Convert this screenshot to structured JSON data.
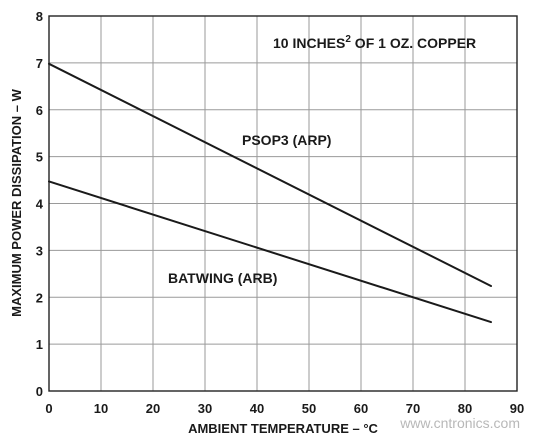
{
  "chart_data": {
    "type": "line",
    "xlabel": "AMBIENT TEMPERATURE – °C",
    "ylabel": "MAXIMUM POWER DISSIPATION – W",
    "xlim": [
      0,
      90
    ],
    "ylim": [
      0,
      8
    ],
    "xticks": [
      "0",
      "10",
      "20",
      "30",
      "40",
      "50",
      "60",
      "70",
      "80",
      "90"
    ],
    "yticks": [
      "0",
      "1",
      "2",
      "3",
      "4",
      "5",
      "6",
      "7",
      "8"
    ],
    "grid": true,
    "annotation": {
      "prefix": "10 INCHES",
      "superscript": "2",
      "suffix": " OF 1 OZ. COPPER"
    },
    "series": [
      {
        "name": "PSOP3 (ARP)",
        "x": [
          0,
          85
        ],
        "y": [
          6.98,
          2.24
        ]
      },
      {
        "name": "BATWING (ARB)",
        "x": [
          0,
          85
        ],
        "y": [
          4.47,
          1.47
        ]
      }
    ]
  },
  "watermark": "www.cntronics.com"
}
